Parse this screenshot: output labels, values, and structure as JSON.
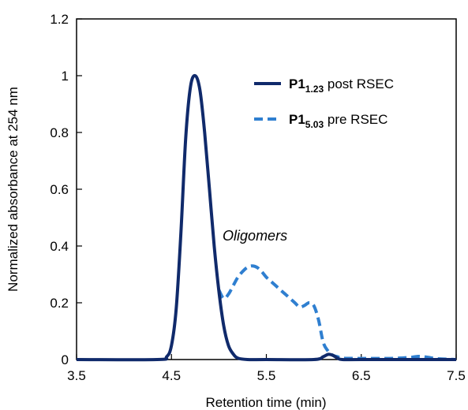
{
  "chart_data": {
    "type": "line",
    "xlabel": "Retention time (min)",
    "ylabel": "Normalized absorbance at 254 nm",
    "xlim": [
      3.5,
      7.5
    ],
    "ylim": [
      0,
      1.2
    ],
    "x_ticks": [
      3.5,
      4.5,
      5.5,
      6.5,
      7.5
    ],
    "x_tick_labels": [
      "3.5",
      "4.5",
      "5.5",
      "6.5",
      "7.5"
    ],
    "y_ticks": [
      0,
      0.2,
      0.4,
      0.6,
      0.8,
      1.0,
      1.2
    ],
    "y_tick_labels": [
      "0",
      "0.2",
      "0.4",
      "0.6",
      "0.8",
      "1",
      "1.2"
    ],
    "grid": false,
    "legend_position": "top-right",
    "series": [
      {
        "name": "P1 1.23 post RSEC",
        "label_main": "P1",
        "label_sub": "1.23",
        "label_rest": " post RSEC",
        "color": "#102a6b",
        "style": "solid",
        "x": [
          3.5,
          4.35,
          4.45,
          4.5,
          4.55,
          4.6,
          4.65,
          4.7,
          4.75,
          4.8,
          4.85,
          4.9,
          4.95,
          5.0,
          5.05,
          5.1,
          5.15,
          5.2,
          5.3,
          5.5,
          6.0,
          6.1,
          6.15,
          6.2,
          6.25,
          6.3,
          6.5,
          7.5
        ],
        "y": [
          0.0,
          0.0,
          0.01,
          0.05,
          0.18,
          0.45,
          0.78,
          0.96,
          1.0,
          0.95,
          0.8,
          0.6,
          0.4,
          0.24,
          0.12,
          0.05,
          0.02,
          0.005,
          0.0,
          0.0,
          0.0,
          0.01,
          0.018,
          0.015,
          0.005,
          0.0,
          0.0,
          0.0
        ]
      },
      {
        "name": "P1 5.03 pre RSEC",
        "label_main": "P1",
        "label_sub": "5.03",
        "label_rest": " pre RSEC",
        "color": "#2f7fd0",
        "style": "dashed",
        "x": [
          5.0,
          5.05,
          5.1,
          5.15,
          5.2,
          5.25,
          5.3,
          5.35,
          5.4,
          5.45,
          5.5,
          5.55,
          5.6,
          5.65,
          5.7,
          5.75,
          5.8,
          5.85,
          5.9,
          5.95,
          6.0,
          6.05,
          6.1,
          6.15,
          6.2,
          6.25,
          6.3,
          6.5,
          6.8,
          7.0,
          7.1,
          7.2,
          7.3,
          7.5
        ],
        "y": [
          0.245,
          0.215,
          0.23,
          0.26,
          0.29,
          0.31,
          0.325,
          0.33,
          0.325,
          0.31,
          0.29,
          0.275,
          0.26,
          0.245,
          0.23,
          0.215,
          0.2,
          0.185,
          0.19,
          0.2,
          0.19,
          0.14,
          0.06,
          0.03,
          0.015,
          0.01,
          0.005,
          0.004,
          0.004,
          0.007,
          0.011,
          0.008,
          0.003,
          0.0
        ]
      }
    ],
    "annotations": [
      {
        "text": "Oligomers",
        "x": 5.38,
        "y": 0.42
      }
    ]
  }
}
